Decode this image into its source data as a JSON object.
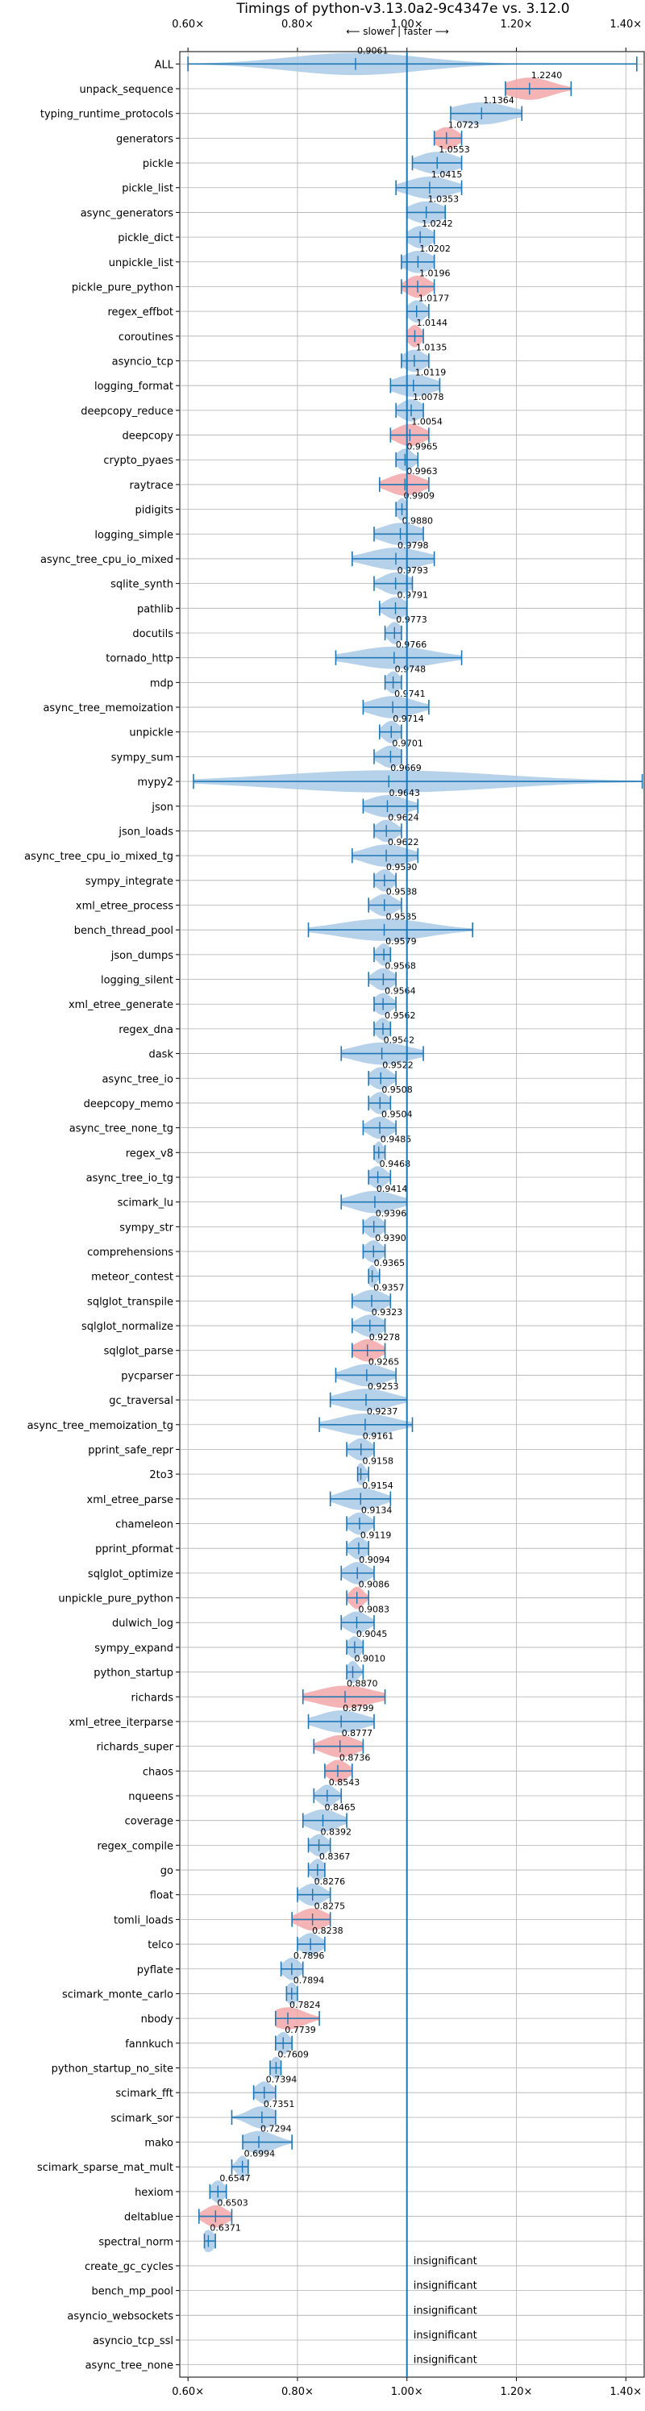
{
  "chart_data": {
    "type": "violin",
    "title": "Timings of python-v3.13.0a2-9c4347e vs. 3.12.0",
    "direction_label": "⟵ slower | faster ⟶",
    "xlim": [
      0.585,
      1.435
    ],
    "xticks": [
      0.6,
      0.8,
      1.0,
      1.2,
      1.4
    ],
    "xtick_labels": [
      "0.60×",
      "0.80×",
      "1.00×",
      "1.20×",
      "1.40×"
    ],
    "reference_line": 1.0,
    "grid": true,
    "colors": {
      "neutral": "#a9c9e6",
      "slower": "#f2a6a8",
      "line": "#1f77b4",
      "grid": "#b0b0b0"
    },
    "insignificant_text": "insignificant",
    "benchmarks": [
      {
        "name": "ALL",
        "value": 0.9061,
        "label": "0.9061",
        "lo": 0.6,
        "hi": 1.42,
        "spread": 0.12,
        "status": "neutral"
      },
      {
        "name": "unpack_sequence",
        "value": 1.224,
        "label": "1.2240",
        "lo": 1.18,
        "hi": 1.3,
        "spread": 0.04,
        "status": "slower"
      },
      {
        "name": "typing_runtime_protocols",
        "value": 1.1364,
        "label": "1.1364",
        "lo": 1.08,
        "hi": 1.21,
        "spread": 0.05,
        "status": "neutral"
      },
      {
        "name": "generators",
        "value": 1.0723,
        "label": "1.0723",
        "lo": 1.05,
        "hi": 1.1,
        "spread": 0.02,
        "status": "slower"
      },
      {
        "name": "pickle",
        "value": 1.0553,
        "label": "1.0553",
        "lo": 1.01,
        "hi": 1.1,
        "spread": 0.035,
        "status": "neutral"
      },
      {
        "name": "pickle_list",
        "value": 1.0415,
        "label": "1.0415",
        "lo": 0.98,
        "hi": 1.1,
        "spread": 0.04,
        "status": "neutral"
      },
      {
        "name": "async_generators",
        "value": 1.0353,
        "label": "1.0353",
        "lo": 1.0,
        "hi": 1.07,
        "spread": 0.03,
        "status": "neutral"
      },
      {
        "name": "pickle_dict",
        "value": 1.0242,
        "label": "1.0242",
        "lo": 1.0,
        "hi": 1.05,
        "spread": 0.02,
        "status": "neutral"
      },
      {
        "name": "unpickle_list",
        "value": 1.0202,
        "label": "1.0202",
        "lo": 0.99,
        "hi": 1.05,
        "spread": 0.025,
        "status": "neutral"
      },
      {
        "name": "pickle_pure_python",
        "value": 1.0196,
        "label": "1.0196",
        "lo": 0.99,
        "hi": 1.05,
        "spread": 0.02,
        "status": "slower"
      },
      {
        "name": "regex_effbot",
        "value": 1.0177,
        "label": "1.0177",
        "lo": 1.0,
        "hi": 1.04,
        "spread": 0.015,
        "status": "neutral"
      },
      {
        "name": "coroutines",
        "value": 1.0144,
        "label": "1.0144",
        "lo": 1.0,
        "hi": 1.03,
        "spread": 0.012,
        "status": "slower"
      },
      {
        "name": "asyncio_tcp",
        "value": 1.0135,
        "label": "1.0135",
        "lo": 0.99,
        "hi": 1.04,
        "spread": 0.02,
        "status": "neutral"
      },
      {
        "name": "logging_format",
        "value": 1.0119,
        "label": "1.0119",
        "lo": 0.97,
        "hi": 1.06,
        "spread": 0.035,
        "status": "neutral"
      },
      {
        "name": "deepcopy_reduce",
        "value": 1.0078,
        "label": "1.0078",
        "lo": 0.98,
        "hi": 1.03,
        "spread": 0.02,
        "status": "neutral"
      },
      {
        "name": "deepcopy",
        "value": 1.0054,
        "label": "1.0054",
        "lo": 0.97,
        "hi": 1.04,
        "spread": 0.025,
        "status": "slower"
      },
      {
        "name": "crypto_pyaes",
        "value": 0.9965,
        "label": "0.9965",
        "lo": 0.98,
        "hi": 1.02,
        "spread": 0.015,
        "status": "neutral"
      },
      {
        "name": "raytrace",
        "value": 0.9963,
        "label": "0.9963",
        "lo": 0.95,
        "hi": 1.04,
        "spread": 0.03,
        "status": "slower"
      },
      {
        "name": "pidigits",
        "value": 0.9909,
        "label": "0.9909",
        "lo": 0.98,
        "hi": 1.0,
        "spread": 0.01,
        "status": "neutral"
      },
      {
        "name": "logging_simple",
        "value": 0.988,
        "label": "0.9880",
        "lo": 0.94,
        "hi": 1.03,
        "spread": 0.035,
        "status": "neutral"
      },
      {
        "name": "async_tree_cpu_io_mixed",
        "value": 0.9798,
        "label": "0.9798",
        "lo": 0.9,
        "hi": 1.05,
        "spread": 0.05,
        "status": "neutral"
      },
      {
        "name": "sqlite_synth",
        "value": 0.9793,
        "label": "0.9793",
        "lo": 0.94,
        "hi": 1.01,
        "spread": 0.025,
        "status": "neutral"
      },
      {
        "name": "pathlib",
        "value": 0.9791,
        "label": "0.9791",
        "lo": 0.95,
        "hi": 1.0,
        "spread": 0.02,
        "status": "neutral"
      },
      {
        "name": "docutils",
        "value": 0.9773,
        "label": "0.9773",
        "lo": 0.96,
        "hi": 0.99,
        "spread": 0.012,
        "status": "neutral"
      },
      {
        "name": "tornado_http",
        "value": 0.9766,
        "label": "0.9766",
        "lo": 0.87,
        "hi": 1.1,
        "spread": 0.07,
        "status": "neutral"
      },
      {
        "name": "mdp",
        "value": 0.9748,
        "label": "0.9748",
        "lo": 0.96,
        "hi": 0.99,
        "spread": 0.012,
        "status": "neutral"
      },
      {
        "name": "async_tree_memoization",
        "value": 0.9741,
        "label": "0.9741",
        "lo": 0.92,
        "hi": 1.04,
        "spread": 0.04,
        "status": "neutral"
      },
      {
        "name": "unpickle",
        "value": 0.9714,
        "label": "0.9714",
        "lo": 0.95,
        "hi": 0.99,
        "spread": 0.015,
        "status": "neutral"
      },
      {
        "name": "sympy_sum",
        "value": 0.9701,
        "label": "0.9701",
        "lo": 0.94,
        "hi": 0.99,
        "spread": 0.02,
        "status": "neutral"
      },
      {
        "name": "mypy2",
        "value": 0.9669,
        "label": "0.9669",
        "lo": 0.61,
        "hi": 1.43,
        "spread": 0.2,
        "status": "neutral"
      },
      {
        "name": "json",
        "value": 0.9643,
        "label": "0.9643",
        "lo": 0.92,
        "hi": 1.02,
        "spread": 0.035,
        "status": "neutral"
      },
      {
        "name": "json_loads",
        "value": 0.9624,
        "label": "0.9624",
        "lo": 0.94,
        "hi": 0.99,
        "spread": 0.018,
        "status": "neutral"
      },
      {
        "name": "async_tree_cpu_io_mixed_tg",
        "value": 0.9622,
        "label": "0.9622",
        "lo": 0.9,
        "hi": 1.02,
        "spread": 0.04,
        "status": "neutral"
      },
      {
        "name": "sympy_integrate",
        "value": 0.959,
        "label": "0.9590",
        "lo": 0.94,
        "hi": 0.98,
        "spread": 0.015,
        "status": "neutral"
      },
      {
        "name": "xml_etree_process",
        "value": 0.9588,
        "label": "0.9588",
        "lo": 0.93,
        "hi": 0.99,
        "spread": 0.02,
        "status": "neutral"
      },
      {
        "name": "bench_thread_pool",
        "value": 0.9585,
        "label": "0.9585",
        "lo": 0.82,
        "hi": 1.12,
        "spread": 0.08,
        "status": "neutral"
      },
      {
        "name": "json_dumps",
        "value": 0.9579,
        "label": "0.9579",
        "lo": 0.94,
        "hi": 0.97,
        "spread": 0.012,
        "status": "neutral"
      },
      {
        "name": "logging_silent",
        "value": 0.9568,
        "label": "0.9568",
        "lo": 0.93,
        "hi": 0.98,
        "spread": 0.018,
        "status": "neutral"
      },
      {
        "name": "xml_etree_generate",
        "value": 0.9564,
        "label": "0.9564",
        "lo": 0.94,
        "hi": 0.98,
        "spread": 0.015,
        "status": "neutral"
      },
      {
        "name": "regex_dna",
        "value": 0.9562,
        "label": "0.9562",
        "lo": 0.94,
        "hi": 0.97,
        "spread": 0.012,
        "status": "neutral"
      },
      {
        "name": "dask",
        "value": 0.9542,
        "label": "0.9542",
        "lo": 0.88,
        "hi": 1.03,
        "spread": 0.05,
        "status": "neutral"
      },
      {
        "name": "async_tree_io",
        "value": 0.9522,
        "label": "0.9522",
        "lo": 0.93,
        "hi": 0.98,
        "spread": 0.018,
        "status": "neutral"
      },
      {
        "name": "deepcopy_memo",
        "value": 0.9508,
        "label": "0.9508",
        "lo": 0.93,
        "hi": 0.97,
        "spread": 0.015,
        "status": "neutral"
      },
      {
        "name": "async_tree_none_tg",
        "value": 0.9504,
        "label": "0.9504",
        "lo": 0.92,
        "hi": 0.98,
        "spread": 0.02,
        "status": "neutral"
      },
      {
        "name": "regex_v8",
        "value": 0.9485,
        "label": "0.9485",
        "lo": 0.94,
        "hi": 0.96,
        "spread": 0.008,
        "status": "neutral"
      },
      {
        "name": "async_tree_io_tg",
        "value": 0.9468,
        "label": "0.9468",
        "lo": 0.93,
        "hi": 0.97,
        "spread": 0.015,
        "status": "neutral"
      },
      {
        "name": "scimark_lu",
        "value": 0.9414,
        "label": "0.9414",
        "lo": 0.88,
        "hi": 1.0,
        "spread": 0.04,
        "status": "neutral"
      },
      {
        "name": "sympy_str",
        "value": 0.9396,
        "label": "0.9396",
        "lo": 0.92,
        "hi": 0.96,
        "spread": 0.015,
        "status": "neutral"
      },
      {
        "name": "comprehensions",
        "value": 0.939,
        "label": "0.9390",
        "lo": 0.92,
        "hi": 0.96,
        "spread": 0.015,
        "status": "neutral"
      },
      {
        "name": "meteor_contest",
        "value": 0.9365,
        "label": "0.9365",
        "lo": 0.93,
        "hi": 0.95,
        "spread": 0.008,
        "status": "neutral"
      },
      {
        "name": "sqlglot_transpile",
        "value": 0.9357,
        "label": "0.9357",
        "lo": 0.9,
        "hi": 0.97,
        "spread": 0.025,
        "status": "neutral"
      },
      {
        "name": "sqlglot_normalize",
        "value": 0.9323,
        "label": "0.9323",
        "lo": 0.9,
        "hi": 0.96,
        "spread": 0.022,
        "status": "neutral"
      },
      {
        "name": "sqlglot_parse",
        "value": 0.9278,
        "label": "0.9278",
        "lo": 0.9,
        "hi": 0.96,
        "spread": 0.022,
        "status": "slower"
      },
      {
        "name": "pycparser",
        "value": 0.9265,
        "label": "0.9265",
        "lo": 0.87,
        "hi": 0.98,
        "spread": 0.035,
        "status": "neutral"
      },
      {
        "name": "gc_traversal",
        "value": 0.9253,
        "label": "0.9253",
        "lo": 0.86,
        "hi": 1.0,
        "spread": 0.045,
        "status": "neutral"
      },
      {
        "name": "async_tree_memoization_tg",
        "value": 0.9237,
        "label": "0.9237",
        "lo": 0.84,
        "hi": 1.01,
        "spread": 0.05,
        "status": "neutral"
      },
      {
        "name": "pprint_safe_repr",
        "value": 0.9161,
        "label": "0.9161",
        "lo": 0.89,
        "hi": 0.94,
        "spread": 0.018,
        "status": "neutral"
      },
      {
        "name": "2to3",
        "value": 0.9158,
        "label": "0.9158",
        "lo": 0.91,
        "hi": 0.93,
        "spread": 0.008,
        "status": "neutral"
      },
      {
        "name": "xml_etree_parse",
        "value": 0.9154,
        "label": "0.9154",
        "lo": 0.86,
        "hi": 0.97,
        "spread": 0.035,
        "status": "neutral"
      },
      {
        "name": "chameleon",
        "value": 0.9134,
        "label": "0.9134",
        "lo": 0.89,
        "hi": 0.94,
        "spread": 0.018,
        "status": "neutral"
      },
      {
        "name": "pprint_pformat",
        "value": 0.9119,
        "label": "0.9119",
        "lo": 0.89,
        "hi": 0.93,
        "spread": 0.015,
        "status": "neutral"
      },
      {
        "name": "sqlglot_optimize",
        "value": 0.9094,
        "label": "0.9094",
        "lo": 0.88,
        "hi": 0.94,
        "spread": 0.02,
        "status": "neutral"
      },
      {
        "name": "unpickle_pure_python",
        "value": 0.9086,
        "label": "0.9086",
        "lo": 0.89,
        "hi": 0.93,
        "spread": 0.012,
        "status": "slower"
      },
      {
        "name": "dulwich_log",
        "value": 0.9083,
        "label": "0.9083",
        "lo": 0.88,
        "hi": 0.94,
        "spread": 0.02,
        "status": "neutral"
      },
      {
        "name": "sympy_expand",
        "value": 0.9045,
        "label": "0.9045",
        "lo": 0.89,
        "hi": 0.92,
        "spread": 0.012,
        "status": "neutral"
      },
      {
        "name": "python_startup",
        "value": 0.901,
        "label": "0.9010",
        "lo": 0.89,
        "hi": 0.92,
        "spread": 0.01,
        "status": "neutral"
      },
      {
        "name": "richards",
        "value": 0.887,
        "label": "0.8870",
        "lo": 0.81,
        "hi": 0.96,
        "spread": 0.05,
        "status": "slower"
      },
      {
        "name": "xml_etree_iterparse",
        "value": 0.8799,
        "label": "0.8799",
        "lo": 0.82,
        "hi": 0.94,
        "spread": 0.04,
        "status": "neutral"
      },
      {
        "name": "richards_super",
        "value": 0.8777,
        "label": "0.8777",
        "lo": 0.83,
        "hi": 0.92,
        "spread": 0.03,
        "status": "slower"
      },
      {
        "name": "chaos",
        "value": 0.8736,
        "label": "0.8736",
        "lo": 0.85,
        "hi": 0.9,
        "spread": 0.018,
        "status": "slower"
      },
      {
        "name": "nqueens",
        "value": 0.8543,
        "label": "0.8543",
        "lo": 0.83,
        "hi": 0.88,
        "spread": 0.015,
        "status": "neutral"
      },
      {
        "name": "coverage",
        "value": 0.8465,
        "label": "0.8465",
        "lo": 0.81,
        "hi": 0.89,
        "spread": 0.028,
        "status": "neutral"
      },
      {
        "name": "regex_compile",
        "value": 0.8392,
        "label": "0.8392",
        "lo": 0.82,
        "hi": 0.86,
        "spread": 0.015,
        "status": "neutral"
      },
      {
        "name": "go",
        "value": 0.8367,
        "label": "0.8367",
        "lo": 0.82,
        "hi": 0.85,
        "spread": 0.012,
        "status": "neutral"
      },
      {
        "name": "float",
        "value": 0.8276,
        "label": "0.8276",
        "lo": 0.8,
        "hi": 0.86,
        "spread": 0.02,
        "status": "neutral"
      },
      {
        "name": "tomli_loads",
        "value": 0.8275,
        "label": "0.8275",
        "lo": 0.79,
        "hi": 0.86,
        "spread": 0.025,
        "status": "slower"
      },
      {
        "name": "telco",
        "value": 0.8238,
        "label": "0.8238",
        "lo": 0.8,
        "hi": 0.85,
        "spread": 0.018,
        "status": "neutral"
      },
      {
        "name": "pyflate",
        "value": 0.7896,
        "label": "0.7896",
        "lo": 0.77,
        "hi": 0.81,
        "spread": 0.015,
        "status": "neutral"
      },
      {
        "name": "scimark_monte_carlo",
        "value": 0.7894,
        "label": "0.7894",
        "lo": 0.78,
        "hi": 0.8,
        "spread": 0.01,
        "status": "neutral"
      },
      {
        "name": "nbody",
        "value": 0.7824,
        "label": "0.7824",
        "lo": 0.76,
        "hi": 0.84,
        "spread": 0.03,
        "status": "slower"
      },
      {
        "name": "fannkuch",
        "value": 0.7739,
        "label": "0.7739",
        "lo": 0.76,
        "hi": 0.79,
        "spread": 0.012,
        "status": "neutral"
      },
      {
        "name": "python_startup_no_site",
        "value": 0.7609,
        "label": "0.7609",
        "lo": 0.75,
        "hi": 0.77,
        "spread": 0.01,
        "status": "neutral"
      },
      {
        "name": "scimark_fft",
        "value": 0.7394,
        "label": "0.7394",
        "lo": 0.72,
        "hi": 0.76,
        "spread": 0.015,
        "status": "neutral"
      },
      {
        "name": "scimark_sor",
        "value": 0.7351,
        "label": "0.7351",
        "lo": 0.68,
        "hi": 0.76,
        "spread": 0.025,
        "status": "neutral"
      },
      {
        "name": "mako",
        "value": 0.7294,
        "label": "0.7294",
        "lo": 0.7,
        "hi": 0.79,
        "spread": 0.03,
        "status": "neutral"
      },
      {
        "name": "scimark_sparse_mat_mult",
        "value": 0.6994,
        "label": "0.6994",
        "lo": 0.68,
        "hi": 0.71,
        "spread": 0.01,
        "status": "neutral"
      },
      {
        "name": "hexiom",
        "value": 0.6547,
        "label": "0.6547",
        "lo": 0.64,
        "hi": 0.67,
        "spread": 0.012,
        "status": "neutral"
      },
      {
        "name": "deltablue",
        "value": 0.6503,
        "label": "0.6503",
        "lo": 0.62,
        "hi": 0.68,
        "spread": 0.02,
        "status": "slower"
      },
      {
        "name": "spectral_norm",
        "value": 0.6371,
        "label": "0.6371",
        "lo": 0.63,
        "hi": 0.65,
        "spread": 0.012,
        "status": "neutral"
      },
      {
        "name": "create_gc_cycles",
        "status": "insignificant"
      },
      {
        "name": "bench_mp_pool",
        "status": "insignificant"
      },
      {
        "name": "asyncio_websockets",
        "status": "insignificant"
      },
      {
        "name": "asyncio_tcp_ssl",
        "status": "insignificant"
      },
      {
        "name": "async_tree_none",
        "status": "insignificant"
      }
    ]
  }
}
